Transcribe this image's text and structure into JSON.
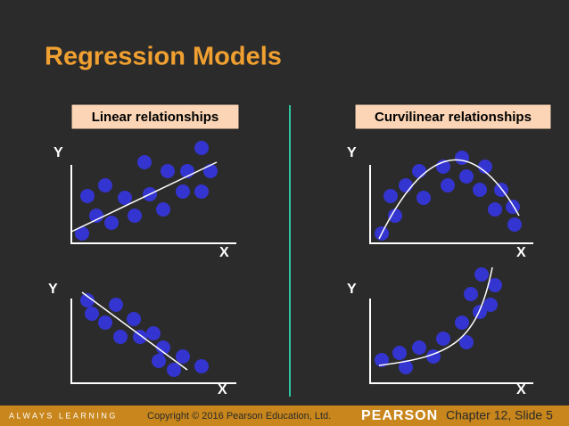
{
  "title": "Regression Models",
  "panels": [
    {
      "label": "Linear relationships",
      "plots": [
        {
          "y_label": "Y",
          "x_label": "X"
        },
        {
          "y_label": "Y",
          "x_label": "X"
        }
      ]
    },
    {
      "label": "Curvilinear relationships",
      "plots": [
        {
          "y_label": "Y",
          "x_label": "X"
        },
        {
          "y_label": "Y",
          "x_label": "X"
        }
      ]
    }
  ],
  "footer": {
    "tagline": "ALWAYS LEARNING",
    "copyright": "Copyright © 2016 Pearson Education, Ltd.",
    "brand": "PEARSON",
    "slide": "Chapter 12, Slide 5"
  }
}
